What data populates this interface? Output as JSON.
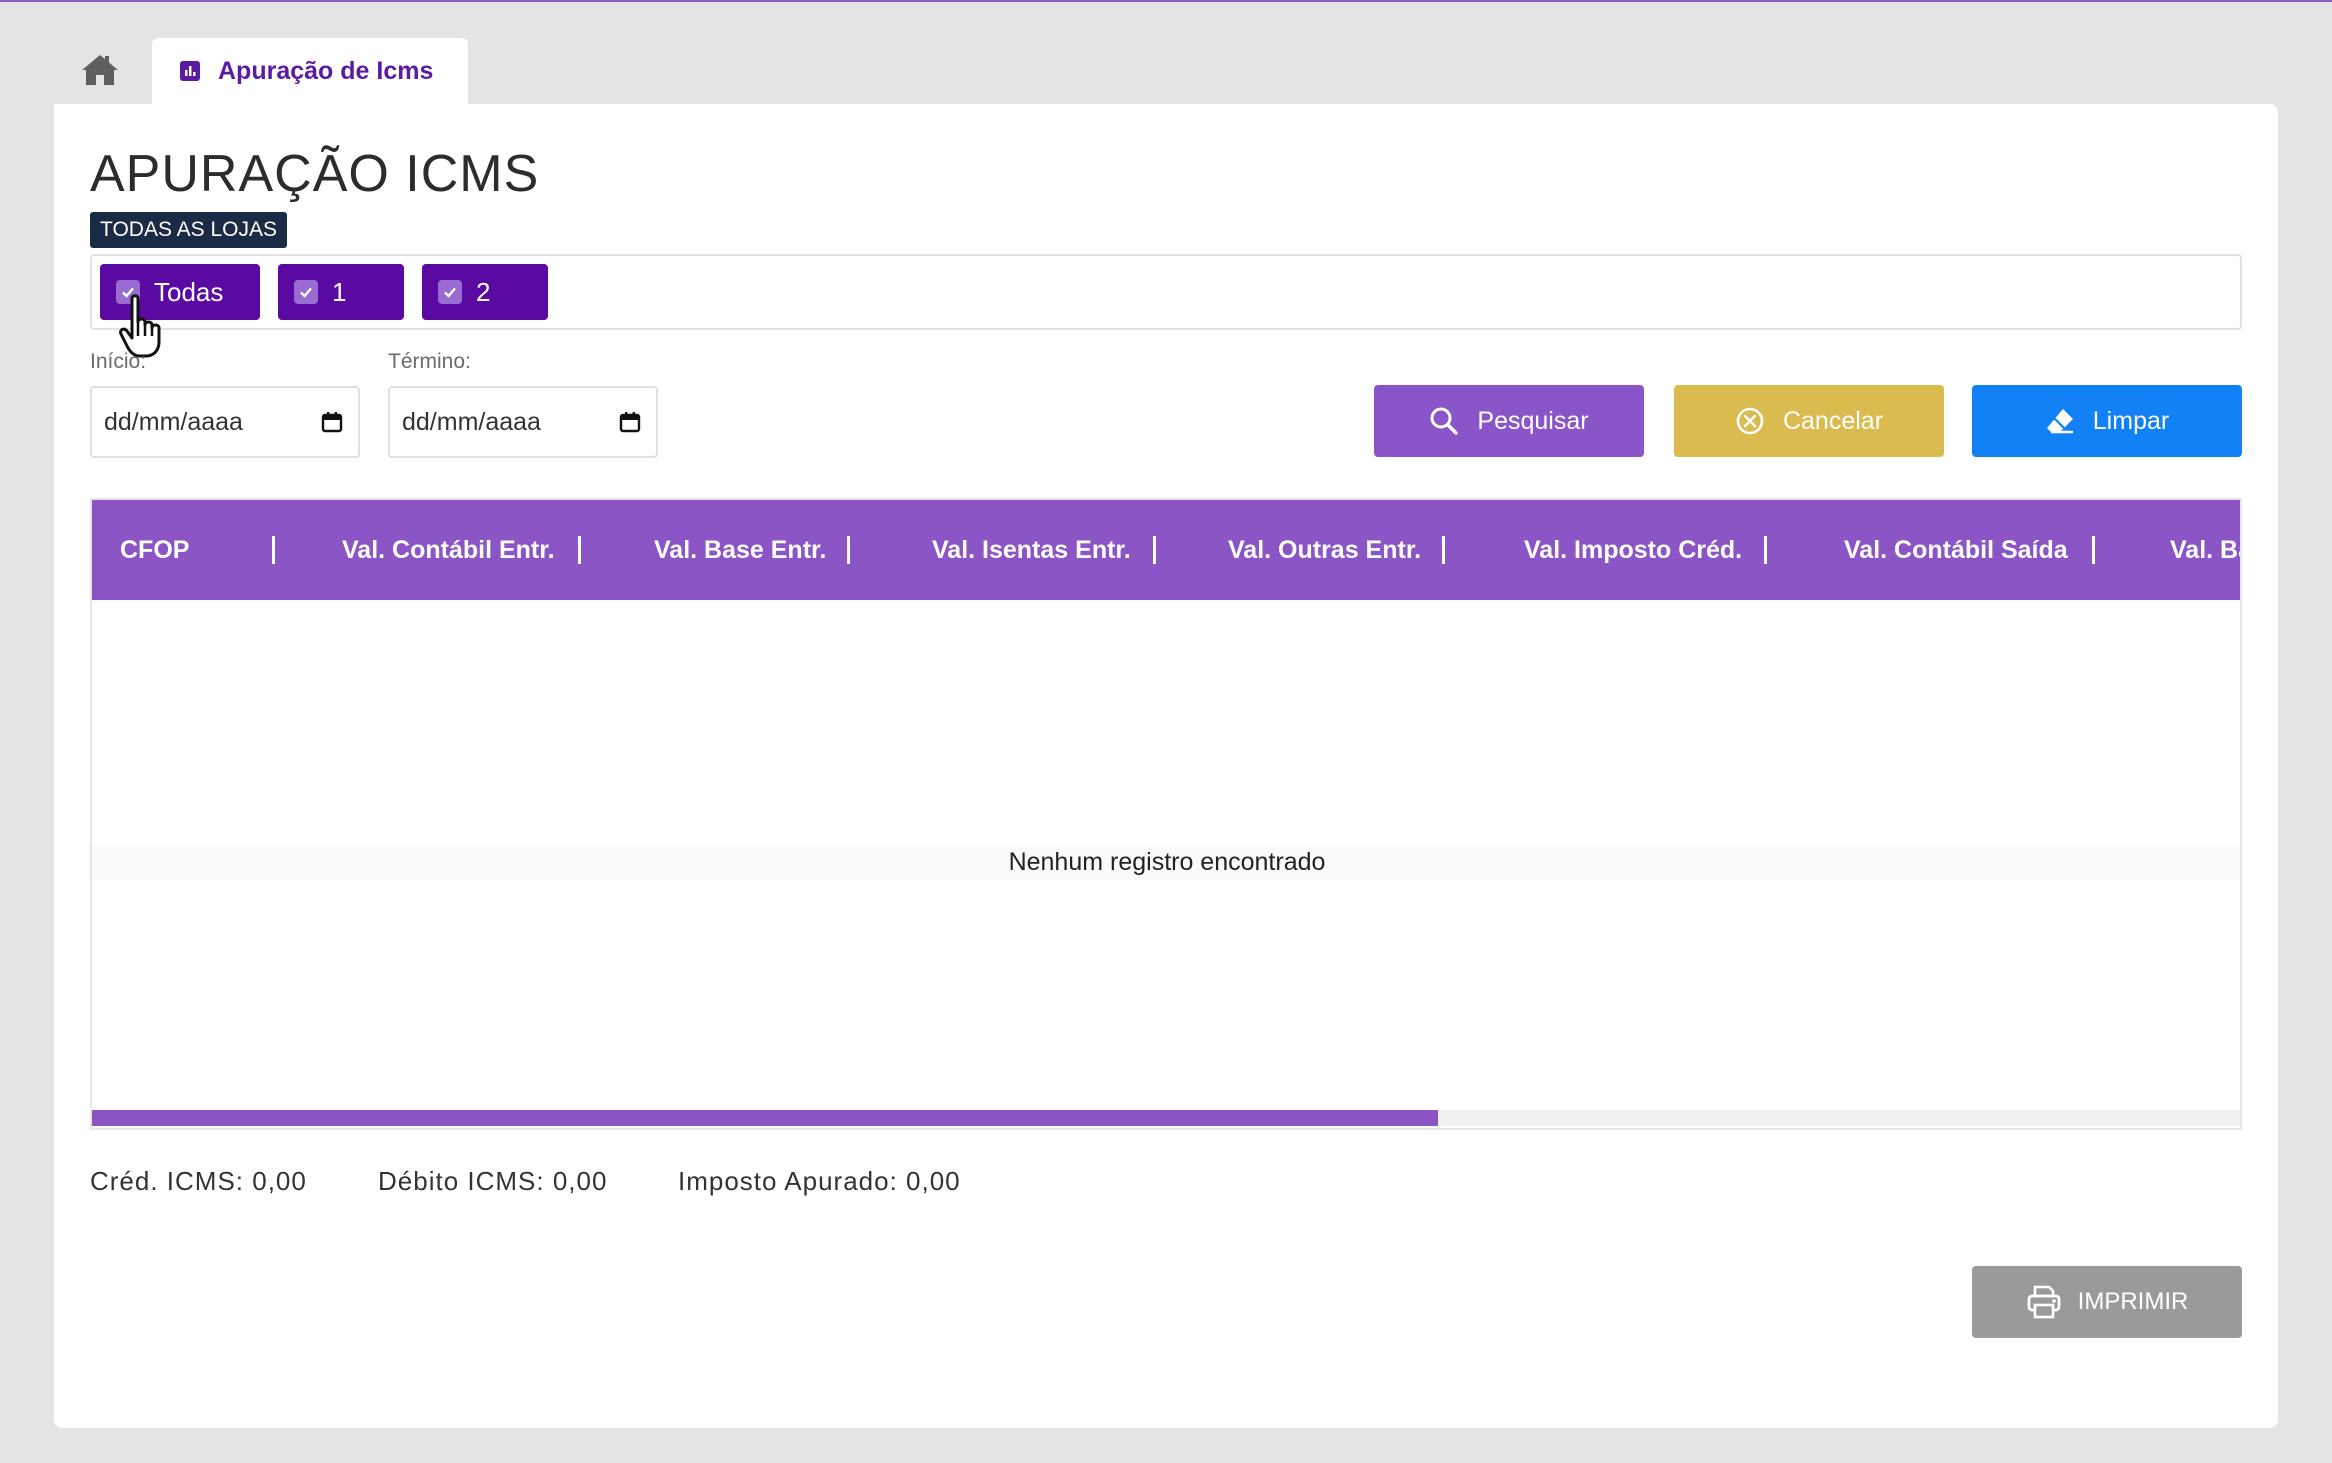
{
  "tabs": {
    "home_icon": "home-icon",
    "active": {
      "label": "Apuração de Icms",
      "icon": "chart-icon"
    }
  },
  "page": {
    "title": "APURAÇÃO ICMS"
  },
  "stores": {
    "badge": "TODAS AS LOJAS",
    "options": [
      {
        "label": "Todas",
        "checked": true
      },
      {
        "label": "1",
        "checked": true
      },
      {
        "label": "2",
        "checked": true
      }
    ]
  },
  "filters": {
    "start_label": "Início:",
    "start_value": "dd/mm/aaaa",
    "end_label": "Término:",
    "end_value": "dd/mm/aaaa"
  },
  "actions": {
    "search": "Pesquisar",
    "cancel": "Cancelar",
    "clear": "Limpar",
    "print": "IMPRIMIR"
  },
  "table": {
    "columns": [
      "CFOP",
      "Val. Contábil Entr.",
      "Val. Base Entr.",
      "Val. Isentas Entr.",
      "Val. Outras Entr.",
      "Val. Imposto Créd.",
      "Val. Contábil Saída",
      "Val. Ba"
    ],
    "empty_message": "Nenhum registro encontrado",
    "scroll_fraction": 0.626
  },
  "totals": {
    "credit": "Créd. ICMS: 0,00",
    "debit": "Débito ICMS: 0,00",
    "tax": "Imposto Apurado: 0,00"
  },
  "colors": {
    "primary": "#5a0aa2",
    "header": "#8b55c6",
    "cancel": "#d9bb50",
    "clear": "#1181f5",
    "print": "#9a9a9a"
  }
}
